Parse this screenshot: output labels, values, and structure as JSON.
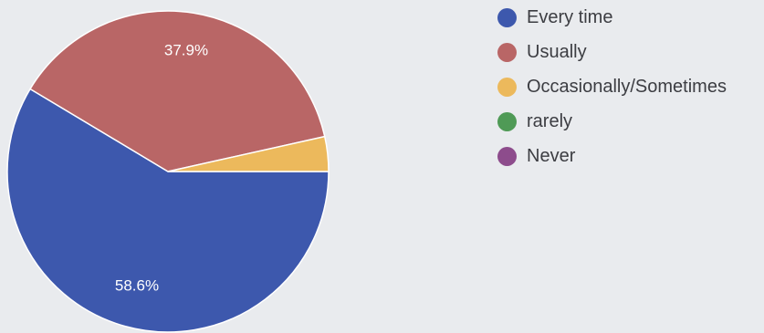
{
  "chart_data": {
    "type": "pie",
    "legend_position": "right",
    "slices": [
      {
        "label": "Every time",
        "value": 58.6,
        "value_label": "58.6%",
        "color": "#3d58ad"
      },
      {
        "label": "Usually",
        "value": 37.9,
        "value_label": "37.9%",
        "color": "#b96666"
      },
      {
        "label": "Occasionally/Sometimes",
        "value": 3.5,
        "value_label": "",
        "color": "#ecb95c"
      },
      {
        "label": "rarely",
        "value": 0,
        "value_label": "",
        "color": "#4f9a56"
      },
      {
        "label": "Never",
        "value": 0,
        "value_label": "",
        "color": "#8d4c8c"
      }
    ]
  }
}
